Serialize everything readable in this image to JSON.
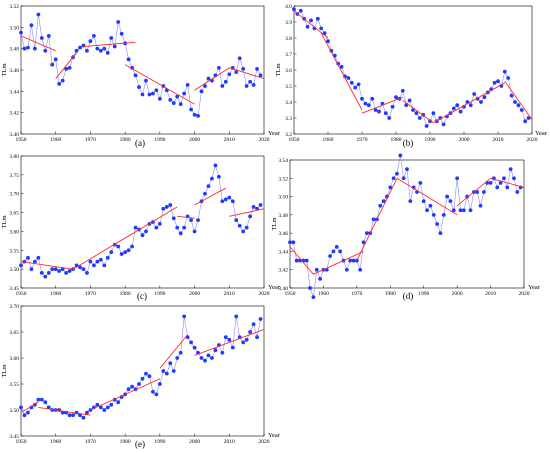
{
  "chart_data": [
    {
      "type": "line",
      "panel_label": "(a)",
      "ylabel": "TLm",
      "xlabel": "Year",
      "xlim": [
        1950,
        2020
      ],
      "ylim": [
        3.4,
        3.52
      ],
      "x_ticks": [
        "1950",
        "1960",
        "1970",
        "1980",
        "1990",
        "2000",
        "2010",
        "2020"
      ],
      "y_ticks": [
        "3.40",
        "3.42",
        "3.44",
        "3.46",
        "3.48",
        "3.50",
        "3.52"
      ],
      "x": [
        1950,
        1951,
        1952,
        1953,
        1954,
        1955,
        1956,
        1957,
        1958,
        1959,
        1960,
        1961,
        1962,
        1963,
        1964,
        1965,
        1966,
        1967,
        1968,
        1969,
        1970,
        1971,
        1972,
        1973,
        1974,
        1975,
        1976,
        1977,
        1978,
        1979,
        1980,
        1981,
        1982,
        1983,
        1984,
        1985,
        1986,
        1987,
        1988,
        1989,
        1990,
        1991,
        1992,
        1993,
        1994,
        1995,
        1996,
        1997,
        1998,
        1999,
        2000,
        2001,
        2002,
        2003,
        2004,
        2005,
        2006,
        2007,
        2008,
        2009,
        2010,
        2011,
        2012,
        2013,
        2014,
        2015,
        2016,
        2017,
        2018,
        2019
      ],
      "values": [
        3.495,
        3.48,
        3.481,
        3.502,
        3.48,
        3.512,
        3.49,
        3.478,
        3.492,
        3.465,
        3.47,
        3.447,
        3.45,
        3.461,
        3.462,
        3.472,
        3.478,
        3.481,
        3.483,
        3.478,
        3.487,
        3.492,
        3.48,
        3.478,
        3.48,
        3.476,
        3.49,
        3.482,
        3.505,
        3.494,
        3.485,
        3.47,
        3.462,
        3.455,
        3.444,
        3.437,
        3.45,
        3.437,
        3.438,
        3.441,
        3.433,
        3.445,
        3.441,
        3.432,
        3.429,
        3.435,
        3.428,
        3.438,
        3.446,
        3.423,
        3.418,
        3.417,
        3.44,
        3.445,
        3.452,
        3.45,
        3.455,
        3.462,
        3.445,
        3.449,
        3.456,
        3.462,
        3.458,
        3.471,
        3.461,
        3.445,
        3.449,
        3.446,
        3.461,
        3.455
      ],
      "trend_segments": [
        {
          "x": [
            1950,
            1960
          ],
          "y": [
            3.492,
            3.478
          ]
        },
        {
          "x": [
            1960,
            1966
          ],
          "y": [
            3.452,
            3.476
          ]
        },
        {
          "x": [
            1968,
            1983
          ],
          "y": [
            3.482,
            3.486
          ]
        },
        {
          "x": [
            1980,
            2000
          ],
          "y": [
            3.465,
            3.428
          ]
        },
        {
          "x": [
            2000,
            2010
          ],
          "y": [
            3.441,
            3.462
          ]
        },
        {
          "x": [
            2010,
            2020
          ],
          "y": [
            3.462,
            3.452
          ]
        }
      ]
    },
    {
      "type": "line",
      "panel_label": "(b)",
      "ylabel": "TLm",
      "xlabel": "Year",
      "xlim": [
        1950,
        2020
      ],
      "ylim": [
        3.2,
        4.0
      ],
      "x_ticks": [
        "1950",
        "1960",
        "1970",
        "1980",
        "1990",
        "2000",
        "2010",
        "2020"
      ],
      "y_ticks": [
        "3.2",
        "3.3",
        "3.4",
        "3.5",
        "3.6",
        "3.7",
        "3.8",
        "3.9",
        "4.0"
      ],
      "x": [
        1950,
        1951,
        1952,
        1953,
        1954,
        1955,
        1956,
        1957,
        1958,
        1959,
        1960,
        1961,
        1962,
        1963,
        1964,
        1965,
        1966,
        1967,
        1968,
        1969,
        1970,
        1971,
        1972,
        1973,
        1974,
        1975,
        1976,
        1977,
        1978,
        1979,
        1980,
        1981,
        1982,
        1983,
        1984,
        1985,
        1986,
        1987,
        1988,
        1989,
        1990,
        1991,
        1992,
        1993,
        1994,
        1995,
        1996,
        1997,
        1998,
        1999,
        2000,
        2001,
        2002,
        2003,
        2004,
        2005,
        2006,
        2007,
        2008,
        2009,
        2010,
        2011,
        2012,
        2013,
        2014,
        2015,
        2016,
        2017,
        2018,
        2019
      ],
      "values": [
        3.98,
        3.95,
        3.97,
        3.92,
        3.87,
        3.91,
        3.86,
        3.92,
        3.86,
        3.83,
        3.78,
        3.72,
        3.69,
        3.64,
        3.62,
        3.56,
        3.55,
        3.52,
        3.49,
        3.51,
        3.42,
        3.39,
        3.38,
        3.42,
        3.35,
        3.34,
        3.39,
        3.33,
        3.3,
        3.37,
        3.43,
        3.42,
        3.47,
        3.38,
        3.41,
        3.35,
        3.33,
        3.3,
        3.32,
        3.25,
        3.28,
        3.33,
        3.28,
        3.3,
        3.26,
        3.31,
        3.33,
        3.36,
        3.38,
        3.34,
        3.37,
        3.4,
        3.38,
        3.45,
        3.42,
        3.4,
        3.43,
        3.46,
        3.48,
        3.52,
        3.53,
        3.5,
        3.59,
        3.55,
        3.44,
        3.4,
        3.38,
        3.35,
        3.28,
        3.3
      ],
      "trend_segments": [
        {
          "x": [
            1950,
            1960
          ],
          "y": [
            3.97,
            3.8
          ]
        },
        {
          "x": [
            1958,
            1970
          ],
          "y": [
            3.83,
            3.35
          ]
        },
        {
          "x": [
            1970,
            1982
          ],
          "y": [
            3.33,
            3.43
          ]
        },
        {
          "x": [
            1982,
            1991
          ],
          "y": [
            3.41,
            3.27
          ]
        },
        {
          "x": [
            1991,
            2012
          ],
          "y": [
            3.27,
            3.52
          ]
        },
        {
          "x": [
            2012,
            2020
          ],
          "y": [
            3.53,
            3.29
          ]
        }
      ]
    },
    {
      "type": "line",
      "panel_label": "(c)",
      "ylabel": "TLm",
      "xlabel": "Year",
      "xlim": [
        1950,
        2020
      ],
      "ylim": [
        3.45,
        3.8
      ],
      "x_ticks": [
        "1950",
        "1960",
        "1970",
        "1980",
        "1990",
        "2000",
        "2010",
        "2020"
      ],
      "y_ticks": [
        "3.45",
        "3.50",
        "3.55",
        "3.60",
        "3.65",
        "3.70",
        "3.75",
        "3.80"
      ],
      "x": [
        1950,
        1951,
        1952,
        1953,
        1954,
        1955,
        1956,
        1957,
        1958,
        1959,
        1960,
        1961,
        1962,
        1963,
        1964,
        1965,
        1966,
        1967,
        1968,
        1969,
        1970,
        1971,
        1972,
        1973,
        1974,
        1975,
        1976,
        1977,
        1978,
        1979,
        1980,
        1981,
        1982,
        1983,
        1984,
        1985,
        1986,
        1987,
        1988,
        1989,
        1990,
        1991,
        1992,
        1993,
        1994,
        1995,
        1996,
        1997,
        1998,
        1999,
        2000,
        2001,
        2002,
        2003,
        2004,
        2005,
        2006,
        2007,
        2008,
        2009,
        2010,
        2011,
        2012,
        2013,
        2014,
        2015,
        2016,
        2017,
        2018,
        2019
      ],
      "values": [
        3.51,
        3.52,
        3.53,
        3.5,
        3.52,
        3.53,
        3.49,
        3.48,
        3.49,
        3.5,
        3.5,
        3.495,
        3.5,
        3.49,
        3.495,
        3.5,
        3.51,
        3.505,
        3.5,
        3.49,
        3.52,
        3.51,
        3.52,
        3.525,
        3.51,
        3.53,
        3.545,
        3.565,
        3.56,
        3.54,
        3.545,
        3.55,
        3.56,
        3.61,
        3.605,
        3.59,
        3.6,
        3.62,
        3.625,
        3.61,
        3.62,
        3.66,
        3.665,
        3.67,
        3.635,
        3.61,
        3.595,
        3.61,
        3.64,
        3.63,
        3.6,
        3.63,
        3.68,
        3.7,
        3.72,
        3.74,
        3.775,
        3.745,
        3.68,
        3.685,
        3.69,
        3.68,
        3.63,
        3.615,
        3.6,
        3.61,
        3.64,
        3.665,
        3.66,
        3.67
      ],
      "trend_segments": [
        {
          "x": [
            1950,
            1965
          ],
          "y": [
            3.52,
            3.5
          ]
        },
        {
          "x": [
            1965,
            1995
          ],
          "y": [
            3.5,
            3.665
          ]
        },
        {
          "x": [
            1995,
            2000
          ],
          "y": [
            3.64,
            3.635
          ]
        },
        {
          "x": [
            2000,
            2009
          ],
          "y": [
            3.67,
            3.715
          ]
        },
        {
          "x": [
            2010,
            2020
          ],
          "y": [
            3.64,
            3.66
          ]
        }
      ]
    },
    {
      "type": "line",
      "panel_label": "(d)",
      "ylabel": "TLm",
      "xlabel": "Year",
      "xlim": [
        1950,
        2020
      ],
      "ylim": [
        3.4,
        3.54
      ],
      "x_ticks": [
        "1950",
        "1960",
        "1970",
        "1980",
        "1990",
        "2000",
        "2010",
        "2020"
      ],
      "y_ticks": [
        "3.40",
        "3.42",
        "3.44",
        "3.46",
        "3.48",
        "3.50",
        "3.52",
        "3.54"
      ],
      "x": [
        1950,
        1951,
        1952,
        1953,
        1954,
        1955,
        1956,
        1957,
        1958,
        1959,
        1960,
        1961,
        1962,
        1963,
        1964,
        1965,
        1966,
        1967,
        1968,
        1969,
        1970,
        1971,
        1972,
        1973,
        1974,
        1975,
        1976,
        1977,
        1978,
        1979,
        1980,
        1981,
        1982,
        1983,
        1984,
        1985,
        1986,
        1987,
        1988,
        1989,
        1990,
        1991,
        1992,
        1993,
        1994,
        1995,
        1996,
        1997,
        1998,
        1999,
        2000,
        2001,
        2002,
        2003,
        2004,
        2005,
        2006,
        2007,
        2008,
        2009,
        2010,
        2011,
        2012,
        2013,
        2014,
        2015,
        2016,
        2017,
        2018,
        2019
      ],
      "values": [
        3.45,
        3.45,
        3.43,
        3.43,
        3.43,
        3.43,
        3.4,
        3.39,
        3.42,
        3.41,
        3.42,
        3.42,
        3.435,
        3.44,
        3.445,
        3.44,
        3.43,
        3.42,
        3.43,
        3.43,
        3.43,
        3.42,
        3.45,
        3.46,
        3.46,
        3.475,
        3.475,
        3.49,
        3.495,
        3.5,
        3.51,
        3.52,
        3.525,
        3.545,
        3.52,
        3.53,
        3.495,
        3.51,
        3.505,
        3.515,
        3.495,
        3.485,
        3.49,
        3.48,
        3.47,
        3.46,
        3.48,
        3.5,
        3.495,
        3.485,
        3.52,
        3.485,
        3.485,
        3.5,
        3.485,
        3.505,
        3.505,
        3.49,
        3.505,
        3.515,
        3.515,
        3.52,
        3.51,
        3.515,
        3.52,
        3.51,
        3.53,
        3.52,
        3.505,
        3.51
      ],
      "trend_segments": [
        {
          "x": [
            1950,
            1957
          ],
          "y": [
            3.445,
            3.415
          ]
        },
        {
          "x": [
            1957,
            1972
          ],
          "y": [
            3.415,
            3.44
          ]
        },
        {
          "x": [
            1970,
            1982
          ],
          "y": [
            3.43,
            3.52
          ]
        },
        {
          "x": [
            1982,
            2000
          ],
          "y": [
            3.52,
            3.48
          ]
        },
        {
          "x": [
            2000,
            2010
          ],
          "y": [
            3.49,
            3.52
          ]
        },
        {
          "x": [
            2010,
            2020
          ],
          "y": [
            3.52,
            3.51
          ]
        }
      ]
    },
    {
      "type": "line",
      "panel_label": "(e)",
      "ylabel": "TLm",
      "xlabel": "Year",
      "xlim": [
        1950,
        2020
      ],
      "ylim": [
        3.45,
        3.7
      ],
      "x_ticks": [
        "1950",
        "1960",
        "1970",
        "1980",
        "1990",
        "2000",
        "2010",
        "2020"
      ],
      "y_ticks": [
        "3.45",
        "3.50",
        "3.55",
        "3.60",
        "3.65",
        "3.70"
      ],
      "x": [
        1950,
        1951,
        1952,
        1953,
        1954,
        1955,
        1956,
        1957,
        1958,
        1959,
        1960,
        1961,
        1962,
        1963,
        1964,
        1965,
        1966,
        1967,
        1968,
        1969,
        1970,
        1971,
        1972,
        1973,
        1974,
        1975,
        1976,
        1977,
        1978,
        1979,
        1980,
        1981,
        1982,
        1983,
        1984,
        1985,
        1986,
        1987,
        1988,
        1989,
        1990,
        1991,
        1992,
        1993,
        1994,
        1995,
        1996,
        1997,
        1998,
        1999,
        2000,
        2001,
        2002,
        2003,
        2004,
        2005,
        2006,
        2007,
        2008,
        2009,
        2010,
        2011,
        2012,
        2013,
        2014,
        2015,
        2016,
        2017,
        2018,
        2019
      ],
      "values": [
        3.505,
        3.49,
        3.495,
        3.505,
        3.51,
        3.52,
        3.52,
        3.515,
        3.505,
        3.5,
        3.5,
        3.5,
        3.495,
        3.495,
        3.49,
        3.49,
        3.495,
        3.49,
        3.485,
        3.495,
        3.5,
        3.505,
        3.51,
        3.505,
        3.5,
        3.505,
        3.51,
        3.52,
        3.515,
        3.525,
        3.53,
        3.54,
        3.545,
        3.54,
        3.55,
        3.56,
        3.57,
        3.565,
        3.535,
        3.53,
        3.55,
        3.575,
        3.57,
        3.59,
        3.575,
        3.6,
        3.61,
        3.68,
        3.64,
        3.63,
        3.62,
        3.61,
        3.6,
        3.595,
        3.605,
        3.6,
        3.615,
        3.625,
        3.61,
        3.64,
        3.635,
        3.62,
        3.68,
        3.64,
        3.63,
        3.635,
        3.65,
        3.665,
        3.64,
        3.675
      ],
      "trend_segments": [
        {
          "x": [
            1950,
            1955
          ],
          "y": [
            3.495,
            3.515
          ]
        },
        {
          "x": [
            1955,
            1970
          ],
          "y": [
            3.505,
            3.49
          ]
        },
        {
          "x": [
            1970,
            1990
          ],
          "y": [
            3.5,
            3.56
          ]
        },
        {
          "x": [
            1990,
            1998
          ],
          "y": [
            3.58,
            3.645
          ]
        },
        {
          "x": [
            2000,
            2020
          ],
          "y": [
            3.605,
            3.655
          ]
        }
      ]
    }
  ],
  "style": {
    "point_color": "#1f3bff",
    "line_color": "#8a8aff",
    "trend_color": "#ff2a2a"
  }
}
